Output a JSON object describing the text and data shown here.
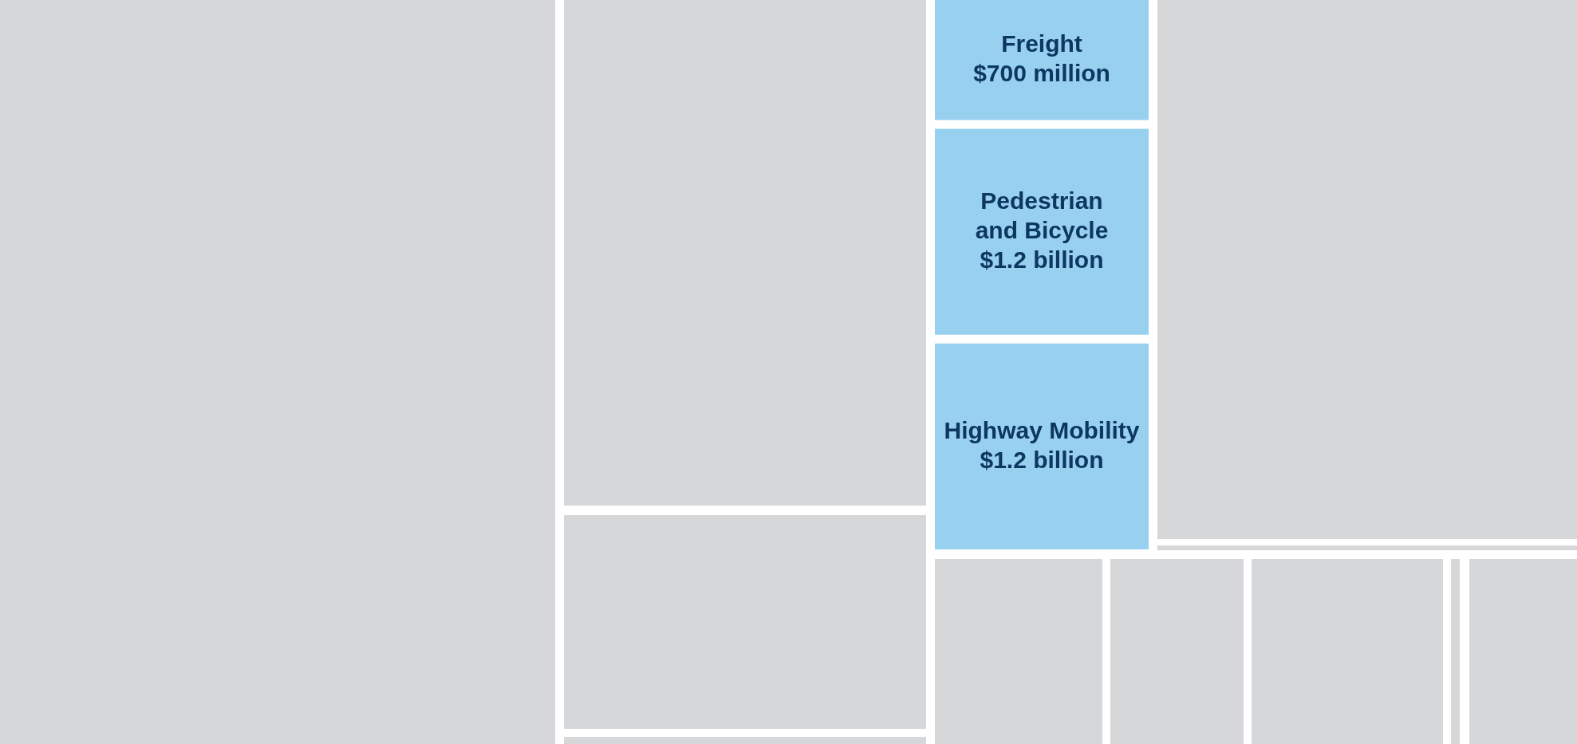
{
  "chart_data": {
    "type": "other",
    "categories": [
      "Freight",
      "Pedestrian and Bicycle",
      "Highway Mobility"
    ],
    "values": [
      700000000,
      1200000000,
      1200000000
    ],
    "value_labels": [
      "$700 million",
      "$1.2 billion",
      "$1.2 billion"
    ],
    "color": "#98d0f0"
  }
}
